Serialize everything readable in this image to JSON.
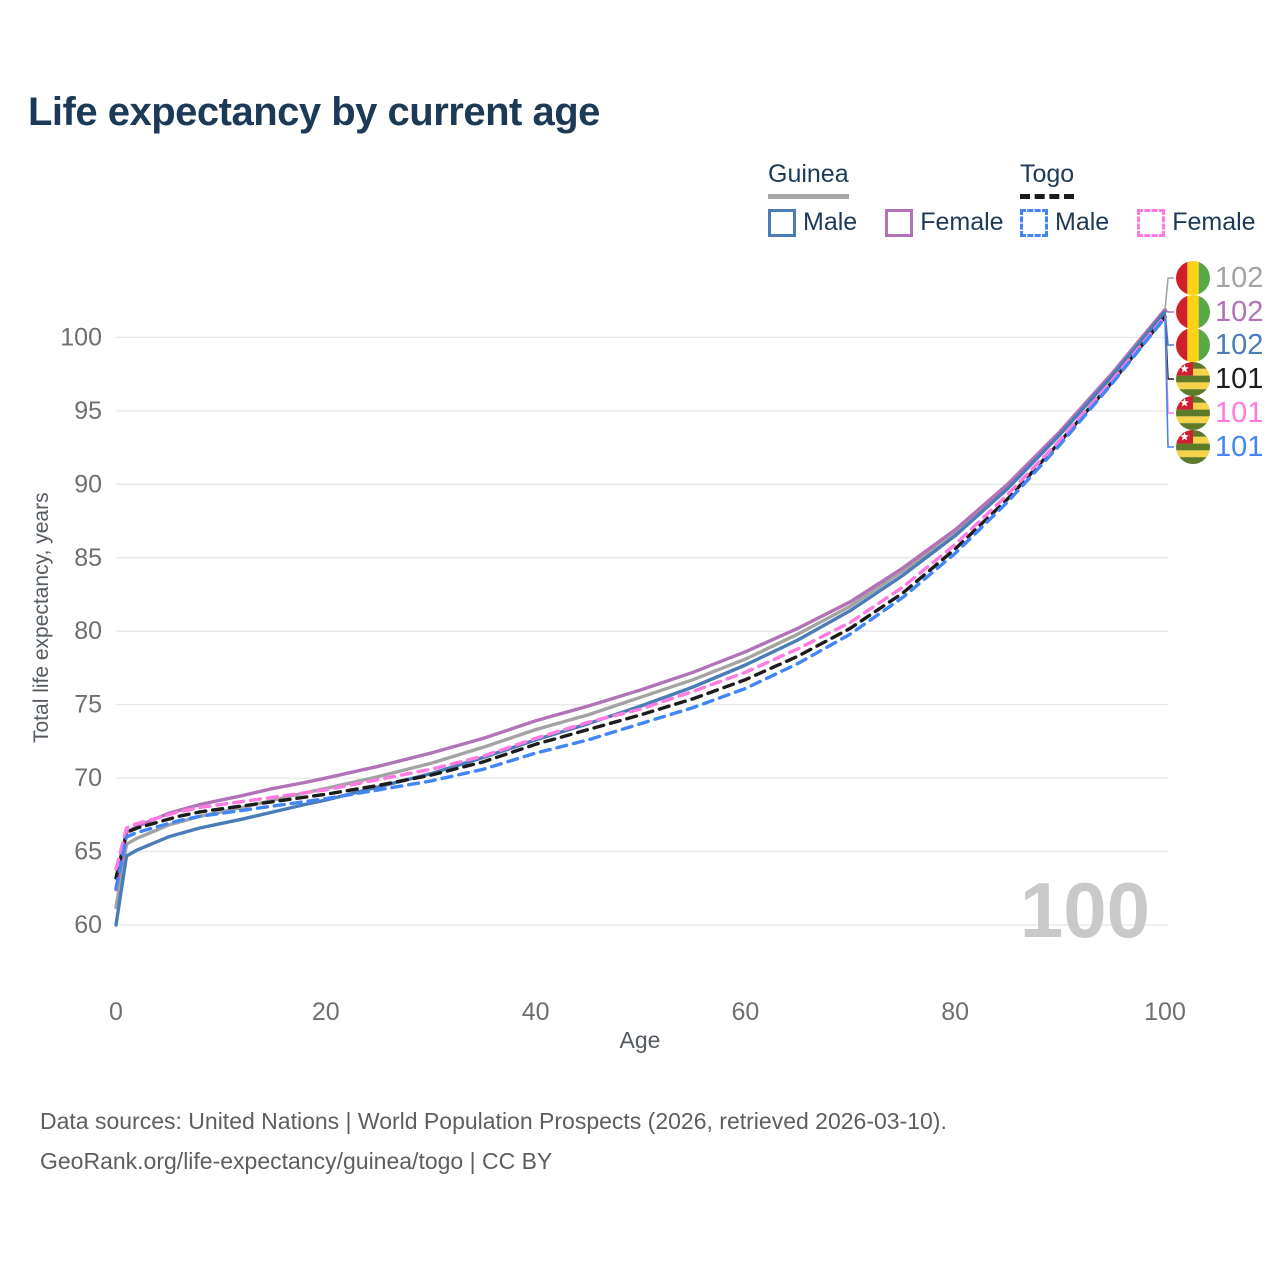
{
  "title": "Life expectancy by current age",
  "legend": {
    "groups": [
      {
        "label": "Guinea",
        "line_style": "solid",
        "underline_color": "#a6a6a6",
        "items": [
          {
            "label": "Male",
            "color": "#4a7cb8",
            "dashed": false
          },
          {
            "label": "Female",
            "color": "#b172b8",
            "dashed": false
          }
        ]
      },
      {
        "label": "Togo",
        "line_style": "dashed",
        "underline_color": "#1a1a1a",
        "items": [
          {
            "label": "Male",
            "color": "#4285f4",
            "dashed": true
          },
          {
            "label": "Female",
            "color": "#ff7be2",
            "dashed": true
          }
        ]
      }
    ]
  },
  "chart_data": {
    "type": "line",
    "title": "Life expectancy by current age",
    "xlabel": "Age",
    "ylabel": "Total life expectancy, years",
    "xlim": [
      0,
      100
    ],
    "ylim": [
      60,
      105
    ],
    "xticks": [
      "0",
      "20",
      "40",
      "60",
      "80",
      "100"
    ],
    "yticks": [
      "60",
      "65",
      "70",
      "75",
      "80",
      "85",
      "90",
      "95",
      "100"
    ],
    "grid": "horizontal",
    "watermark_age": "100",
    "x": [
      0,
      1,
      2,
      3,
      4,
      5,
      6,
      8,
      10,
      12,
      15,
      18,
      20,
      25,
      30,
      35,
      40,
      45,
      50,
      55,
      60,
      65,
      70,
      75,
      80,
      85,
      90,
      95,
      100
    ],
    "series": [
      {
        "name": "Guinea All",
        "group": "Guinea",
        "sex": "All",
        "color": "#a3a3a3",
        "dashed": false,
        "end_label": "102",
        "values": [
          61.2,
          65.5,
          65.9,
          66.2,
          66.5,
          66.8,
          67.0,
          67.4,
          67.7,
          68.0,
          68.5,
          69.0,
          69.3,
          70.1,
          71.0,
          72.1,
          73.3,
          74.3,
          75.5,
          76.7,
          78.1,
          79.8,
          81.7,
          84.1,
          86.7,
          89.9,
          93.5,
          97.5,
          101.85
        ]
      },
      {
        "name": "Guinea Female",
        "group": "Guinea",
        "sex": "Female",
        "color": "#b172b8",
        "dashed": false,
        "end_label": "102",
        "values": [
          62.4,
          66.3,
          66.7,
          67.0,
          67.3,
          67.6,
          67.8,
          68.2,
          68.5,
          68.8,
          69.3,
          69.7,
          70.0,
          70.8,
          71.7,
          72.7,
          73.9,
          74.9,
          76.0,
          77.2,
          78.6,
          80.2,
          82.0,
          84.3,
          86.9,
          90.0,
          93.6,
          97.6,
          101.9
        ]
      },
      {
        "name": "Guinea Male",
        "group": "Guinea",
        "sex": "Male",
        "color": "#4a7cb8",
        "dashed": false,
        "end_label": "102",
        "values": [
          60.0,
          64.7,
          65.1,
          65.4,
          65.7,
          66.0,
          66.2,
          66.6,
          66.9,
          67.2,
          67.7,
          68.2,
          68.5,
          69.4,
          70.3,
          71.4,
          72.6,
          73.7,
          74.9,
          76.2,
          77.7,
          79.4,
          81.4,
          83.8,
          86.5,
          89.7,
          93.4,
          97.4,
          101.75
        ]
      },
      {
        "name": "Togo All",
        "group": "Togo",
        "sex": "All",
        "color": "#1c1c1c",
        "dashed": true,
        "end_label": "101",
        "values": [
          63.2,
          66.3,
          66.6,
          66.8,
          67.0,
          67.2,
          67.4,
          67.7,
          67.9,
          68.1,
          68.4,
          68.7,
          68.9,
          69.5,
          70.2,
          71.1,
          72.3,
          73.3,
          74.3,
          75.4,
          76.7,
          78.3,
          80.2,
          82.6,
          85.6,
          89.0,
          92.9,
          97.0,
          101.4
        ]
      },
      {
        "name": "Togo Female",
        "group": "Togo",
        "sex": "Female",
        "color": "#ff7be2",
        "dashed": true,
        "end_label": "101",
        "values": [
          63.8,
          66.6,
          66.9,
          67.1,
          67.3,
          67.5,
          67.7,
          68.0,
          68.2,
          68.4,
          68.7,
          69.0,
          69.2,
          69.9,
          70.6,
          71.5,
          72.7,
          73.8,
          74.7,
          75.9,
          77.2,
          78.8,
          80.6,
          83.0,
          85.9,
          89.3,
          93.0,
          97.1,
          101.45
        ]
      },
      {
        "name": "Togo Male",
        "group": "Togo",
        "sex": "Male",
        "color": "#4285f4",
        "dashed": true,
        "end_label": "101",
        "values": [
          62.5,
          66.0,
          66.3,
          66.5,
          66.7,
          66.9,
          67.1,
          67.4,
          67.6,
          67.8,
          68.1,
          68.4,
          68.6,
          69.2,
          69.8,
          70.6,
          71.7,
          72.6,
          73.7,
          74.8,
          76.1,
          77.8,
          79.8,
          82.3,
          85.3,
          88.8,
          92.7,
          96.9,
          101.35
        ]
      }
    ],
    "annotations": [
      {
        "label": "102",
        "flag": "guinea",
        "series": "Guinea All",
        "color": "#a3a3a3"
      },
      {
        "label": "102",
        "flag": "guinea",
        "series": "Guinea Female",
        "color": "#b172b8"
      },
      {
        "label": "102",
        "flag": "guinea",
        "series": "Guinea Male",
        "color": "#4a7cb8"
      },
      {
        "label": "101",
        "flag": "togo",
        "series": "Togo All",
        "color": "#1c1c1c"
      },
      {
        "label": "101",
        "flag": "togo",
        "series": "Togo Female",
        "color": "#ff7be2"
      },
      {
        "label": "101",
        "flag": "togo",
        "series": "Togo Male",
        "color": "#4285f4"
      }
    ]
  },
  "footer": {
    "line1": "Data sources: United Nations | World Population Prospects (2026, retrieved 2026-03-10).",
    "line2": "GeoRank.org/life-expectancy/guinea/togo | CC BY"
  },
  "colors": {
    "title_text": "#1c3a57",
    "tick_text": "#6f6f6f",
    "gridline": "#e7e7e7",
    "watermark": "#c9c9c9",
    "footer_text": "#5e5e5e"
  }
}
